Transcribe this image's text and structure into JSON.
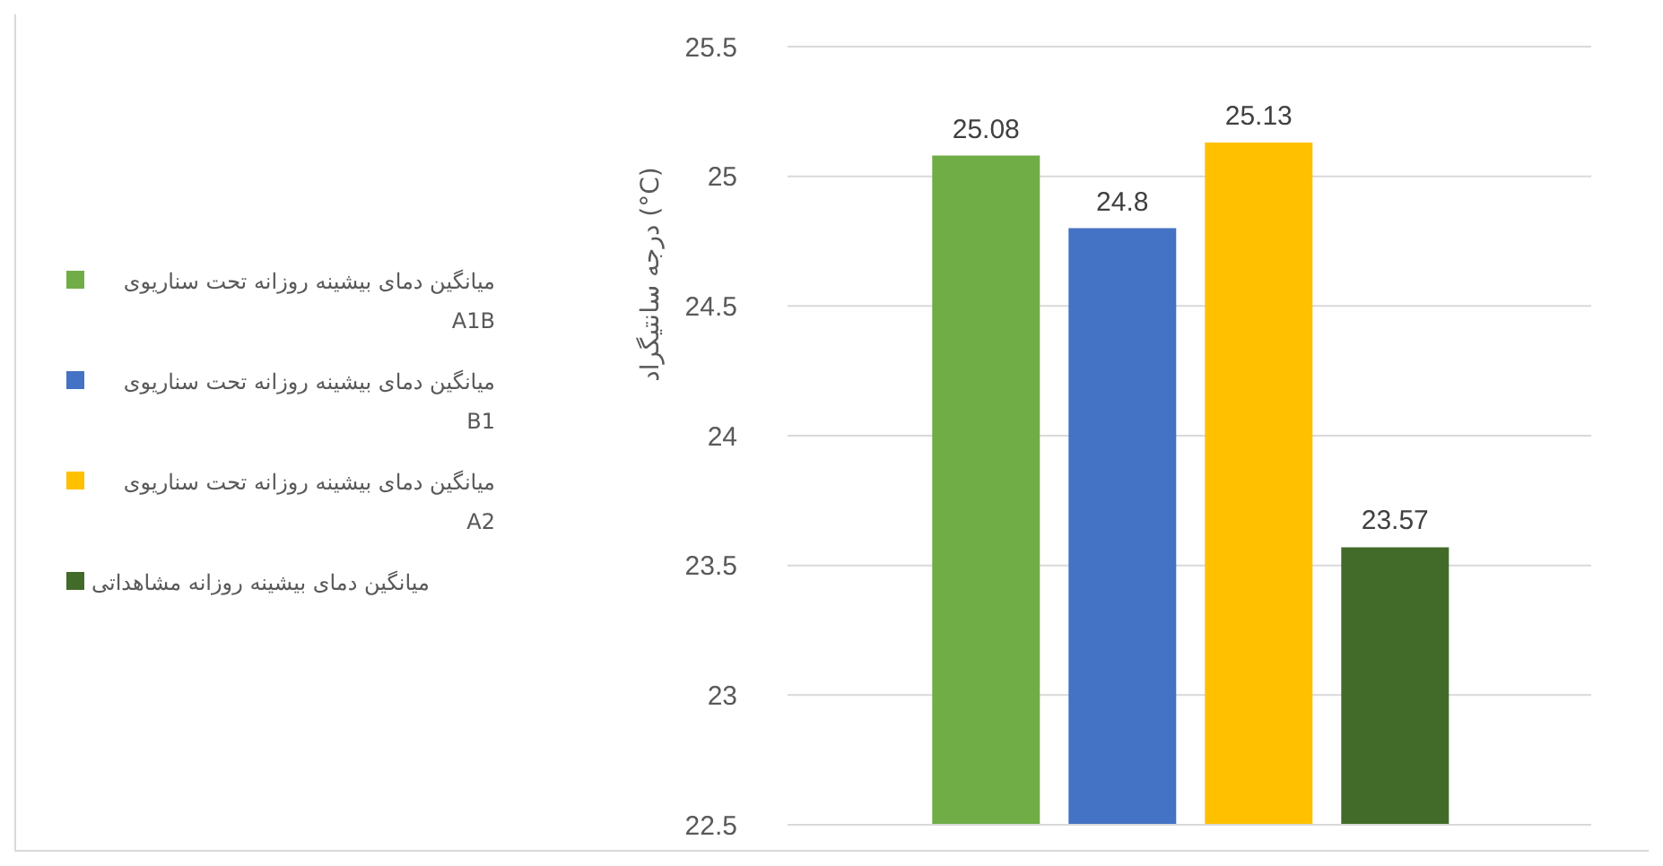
{
  "chart_data": {
    "type": "bar",
    "ylabel": "درجه سانتیگراد (°C)",
    "categories": [
      null
    ],
    "series": [
      {
        "name": "میانگین دمای بیشینه روزانه تحت سناریوی A1B",
        "color": "#70ad47",
        "values": [
          25.08
        ]
      },
      {
        "name": "میانگین دمای بیشینه روزانه تحت سناریوی B1",
        "color": "#4472c4",
        "values": [
          24.8
        ]
      },
      {
        "name": "میانگین دمای بیشینه روزانه تحت سناریوی A2",
        "color": "#ffc000",
        "values": [
          25.13
        ]
      },
      {
        "name": "میانگین دمای بیشینه روزانه مشاهداتی",
        "color": "#426b2a",
        "values": [
          23.57
        ]
      }
    ],
    "ylim": [
      22.5,
      25.5
    ],
    "yticks": [
      22.5,
      23,
      23.5,
      24,
      24.5,
      25,
      25.5
    ],
    "grid": "y",
    "legend": "left",
    "data_labels": true,
    "tick_labels": "y"
  }
}
